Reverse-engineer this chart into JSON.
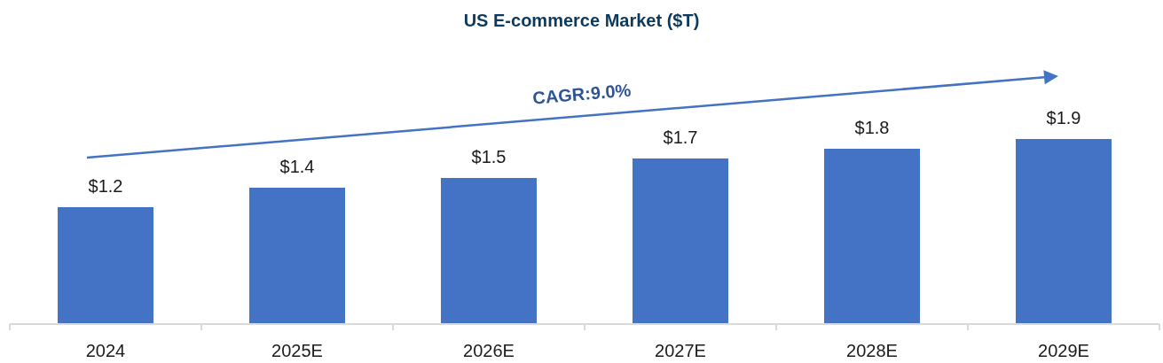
{
  "chart_data": {
    "type": "bar",
    "title": "US E-commerce Market ($T)",
    "categories": [
      "2024",
      "2025E",
      "2026E",
      "2027E",
      "2028E",
      "2029E"
    ],
    "values": [
      1.2,
      1.4,
      1.5,
      1.7,
      1.8,
      1.9
    ],
    "value_labels": [
      "$1.2",
      "$1.4",
      "$1.5",
      "$1.7",
      "$1.8",
      "$1.9"
    ],
    "color": "#4472c4",
    "annotations": [
      "CAGR:9.0%"
    ]
  }
}
